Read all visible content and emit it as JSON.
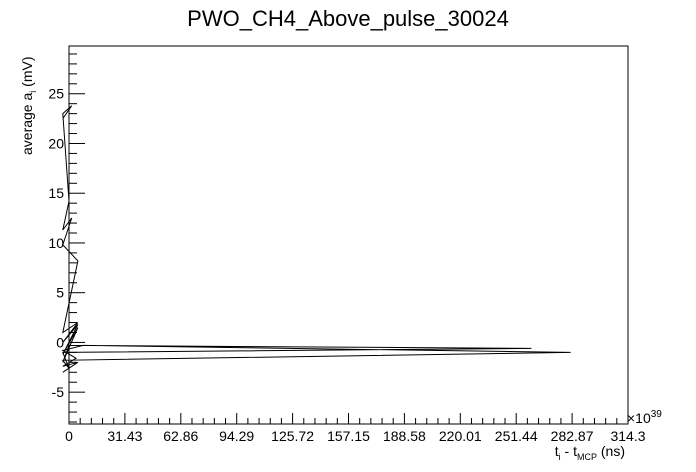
{
  "chart_data": {
    "type": "line",
    "title": "PWO_CH4_Above_pulse_30024",
    "xlabel": {
      "main": "t",
      "sub1": "i",
      "mid": " - t",
      "sub2": "MCP",
      "unit": " (ns)"
    },
    "ylabel": {
      "main": "average a",
      "sub": "i",
      "unit": "  (mV)"
    },
    "x_exponent": "×10",
    "x_exponent_power": "39",
    "xlim": [
      0,
      314.3
    ],
    "ylim": [
      -8.2,
      29.8
    ],
    "x_ticks": [
      "0",
      "31.43",
      "62.86",
      "94.29",
      "125.72",
      "157.15",
      "188.58",
      "220.01",
      "251.44",
      "282.87",
      "314.3"
    ],
    "y_ticks": [
      "-5",
      "0",
      "5",
      "10",
      "15",
      "20",
      "25"
    ],
    "grid": false,
    "series": [
      {
        "x": [
          -3.5,
          1.5,
          -3.5,
          0.0,
          -3.5,
          1.5,
          -3.5,
          5.0,
          -3.5,
          5.0,
          -3.5,
          5.0,
          -3.5,
          5.0,
          -3.5,
          0.0,
          260.0,
          -3.5,
          0.0,
          -3.5,
          282.0,
          8.0,
          -3.5,
          4.0,
          -3.5,
          5.0,
          -3.5
        ],
        "y": [
          22.5,
          23.8,
          23.0,
          14.2,
          11.3,
          12.5,
          9.8,
          8.2,
          1.0,
          2.0,
          0.0,
          1.8,
          -1.2,
          1.5,
          -2.0,
          -0.3,
          -0.6,
          -1.0,
          -2.6,
          -1.8,
          -1.0,
          -0.3,
          -0.8,
          -1.6,
          -2.4,
          -2.0,
          -3.0
        ]
      }
    ]
  }
}
